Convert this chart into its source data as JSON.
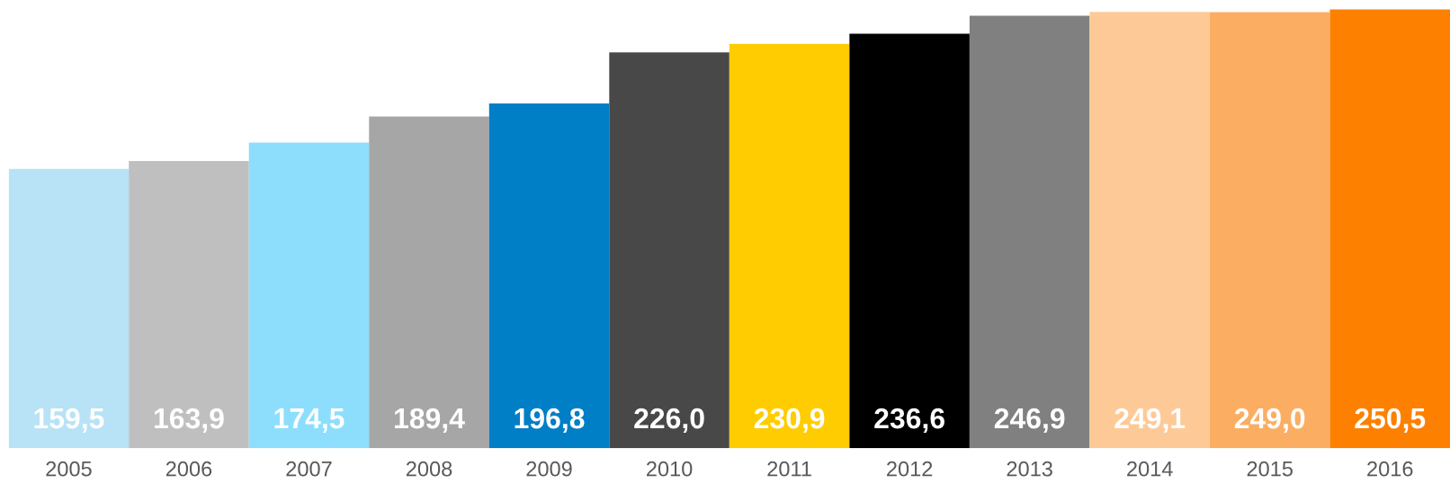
{
  "chart_data": {
    "type": "bar",
    "categories": [
      "2005",
      "2006",
      "2007",
      "2008",
      "2009",
      "2010",
      "2011",
      "2012",
      "2013",
      "2014",
      "2015",
      "2016"
    ],
    "values": [
      159.5,
      163.9,
      174.5,
      189.4,
      196.8,
      226.0,
      230.9,
      236.6,
      246.9,
      249.1,
      249.0,
      250.5
    ],
    "colors": [
      "#b8e2f6",
      "#bfbfbf",
      "#8ddefc",
      "#a6a6a6",
      "#007ec6",
      "#484848",
      "#fecc00",
      "#000000",
      "#808080",
      "#fdca97",
      "#fbae62",
      "#fd8000"
    ],
    "value_labels": [
      "159,5",
      "163,9",
      "174,5",
      "189,4",
      "196,8",
      "226,0",
      "230,9",
      "236,6",
      "246,9",
      "249,1",
      "249,0",
      "250,5"
    ],
    "tick_labels": "x"
  }
}
